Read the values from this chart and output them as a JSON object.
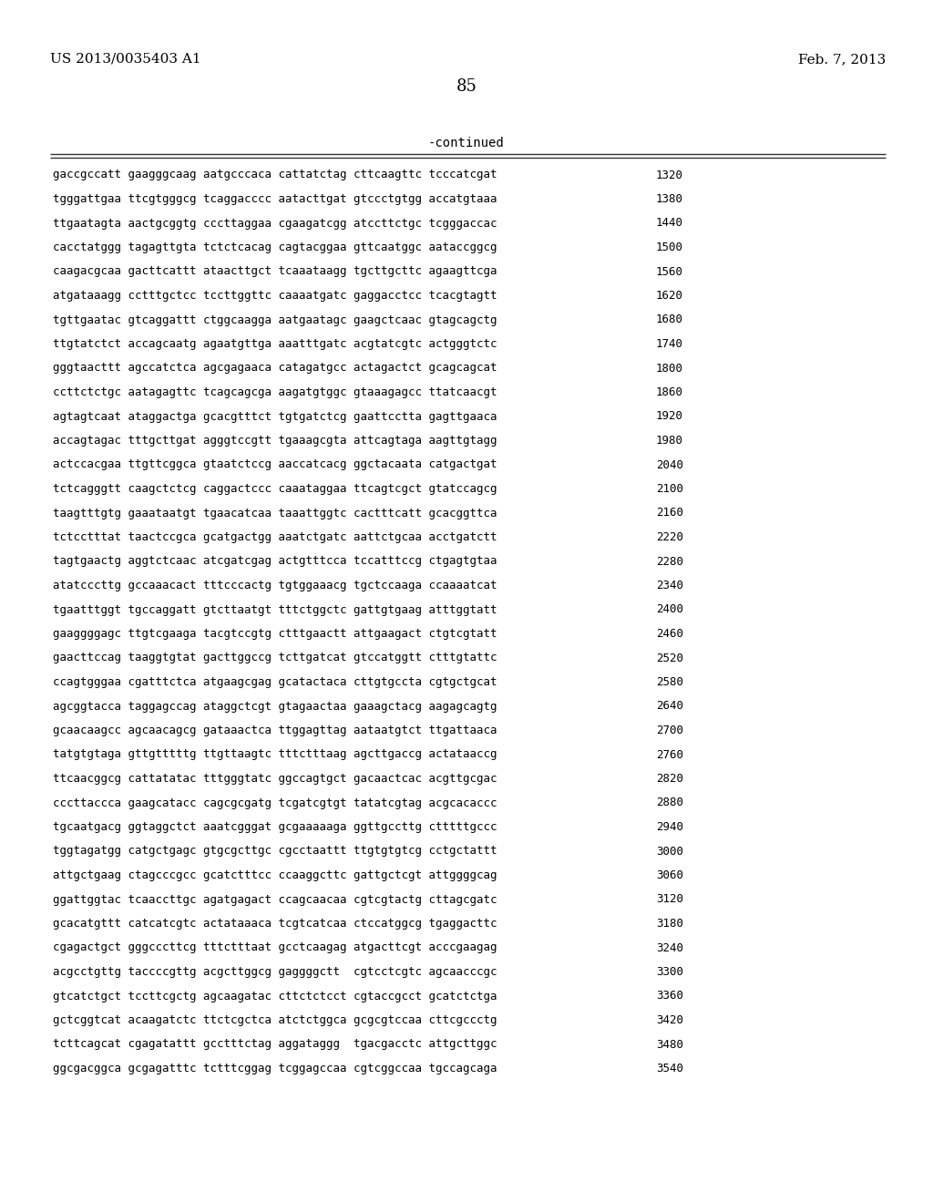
{
  "header_left": "US 2013/0035403 A1",
  "header_right": "Feb. 7, 2013",
  "page_number": "85",
  "continued_label": "-continued",
  "background_color": "#ffffff",
  "text_color": "#000000",
  "font_size_header": 11,
  "font_size_page": 13,
  "font_size_continued": 10,
  "font_size_sequence": 9.0,
  "lines": [
    [
      "gaccgccatt gaagggcaag aatgcccaca cattatctag cttcaagttc tcccatcgat",
      "1320"
    ],
    [
      "tgggattgaa ttcgtgggcg tcaggacccc aatacttgat gtccctgtgg accatgtaaa",
      "1380"
    ],
    [
      "ttgaatagta aactgcggtg cccttaggaa cgaagatcgg atccttctgc tcgggaccac",
      "1440"
    ],
    [
      "cacctatggg tagagttgta tctctcacag cagtacggaa gttcaatggc aataccggcg",
      "1500"
    ],
    [
      "caagacgcaa gacttcattt ataacttgct tcaaataagg tgcttgcttc agaagttcga",
      "1560"
    ],
    [
      "atgataaagg cctttgctcc tccttggttc caaaatgatc gaggacctcc tcacgtagtt",
      "1620"
    ],
    [
      "tgttgaatac gtcaggattt ctggcaagga aatgaatagc gaagctcaac gtagcagctg",
      "1680"
    ],
    [
      "ttgtatctct accagcaatg agaatgttga aaatttgatc acgtatcgtc actgggtctc",
      "1740"
    ],
    [
      "gggtaacttt agccatctca agcgagaaca catagatgcc actagactct gcagcagcat",
      "1800"
    ],
    [
      "ccttctctgc aatagagttc tcagcagcga aagatgtggc gtaaagagcc ttatcaacgt",
      "1860"
    ],
    [
      "agtagtcaat ataggactga gcacgtttct tgtgatctcg gaattcctta gagttgaaca",
      "1920"
    ],
    [
      "accagtagac tttgcttgat agggtccgtt tgaaagcgta attcagtaga aagttgtagg",
      "1980"
    ],
    [
      "actccacgaa ttgttcggca gtaatctccg aaccatcacg ggctacaata catgactgat",
      "2040"
    ],
    [
      "tctcagggtt caagctctcg caggactccc caaataggaa ttcagtcgct gtatccagcg",
      "2100"
    ],
    [
      "taagtttgtg gaaataatgt tgaacatcaa taaattggtc cactttcatt gcacggttca",
      "2160"
    ],
    [
      "tctcctttat taactccgca gcatgactgg aaatctgatc aattctgcaa acctgatctt",
      "2220"
    ],
    [
      "tagtgaactg aggtctcaac atcgatcgag actgtttcca tccatttccg ctgagtgtaa",
      "2280"
    ],
    [
      "atatcccttg gccaaacact tttcccactg tgtggaaacg tgctccaaga ccaaaatcat",
      "2340"
    ],
    [
      "tgaatttggt tgccaggatt gtcttaatgt tttctggctc gattgtgaag atttggtatt",
      "2400"
    ],
    [
      "gaaggggagc ttgtcgaaga tacgtccgtg ctttgaactt attgaagact ctgtcgtatt",
      "2460"
    ],
    [
      "gaacttccag taaggtgtat gacttggccg tcttgatcat gtccatggtt ctttgtattc",
      "2520"
    ],
    [
      "ccagtgggaa cgatttctca atgaagcgag gcatactaca cttgtgccta cgtgctgcat",
      "2580"
    ],
    [
      "agcggtacca taggagccag ataggctcgt gtagaactaa gaaagctacg aagagcagtg",
      "2640"
    ],
    [
      "gcaacaagcc agcaacagcg gataaactca ttggagttag aataatgtct ttgattaaca",
      "2700"
    ],
    [
      "tatgtgtaga gttgtttttg ttgttaagtc tttctttaag agcttgaccg actataaccg",
      "2760"
    ],
    [
      "ttcaacggcg cattatatac tttgggtatc ggccagtgct gacaactcac acgttgcgac",
      "2820"
    ],
    [
      "cccttaccca gaagcatacc cagcgcgatg tcgatcgtgt tatatcgtag acgcacaccc",
      "2880"
    ],
    [
      "tgcaatgacg ggtaggctct aaatcgggat gcgaaaaaga ggttgccttg ctttttgccc",
      "2940"
    ],
    [
      "tggtagatgg catgctgagc gtgcgcttgc cgcctaattt ttgtgtgtcg cctgctattt",
      "3000"
    ],
    [
      "attgctgaag ctagcccgcc gcatctttcc ccaaggcttc gattgctcgt attggggcag",
      "3060"
    ],
    [
      "ggattggtac tcaaccttgc agatgagact ccagcaacaa cgtcgtactg cttagcgatc",
      "3120"
    ],
    [
      "gcacatgttt catcatcgtc actataaaca tcgtcatcaa ctccatggcg tgaggacttc",
      "3180"
    ],
    [
      "cgagactgct gggcccttcg tttctttaat gcctcaagag atgacttcgt acccgaagag",
      "3240"
    ],
    [
      "acgcctgttg taccccgttg acgcttggcg gaggggctt  cgtcctcgtc agcaacccgc",
      "3300"
    ],
    [
      "gtcatctgct tccttcgctg agcaagatac cttctctcct cgtaccgcct gcatctctga",
      "3360"
    ],
    [
      "gctcggtcat acaagatctc ttctcgctca atctctggca gcgcgtccaa cttcgccctg",
      "3420"
    ],
    [
      "tcttcagcat cgagatattt gcctttctag aggataggg  tgacgacctc attgcttggc",
      "3480"
    ],
    [
      "ggcgacggca gcgagatttc tctttcggag tcggagccaa cgtcggccaa tgccagcaga",
      "3540"
    ]
  ]
}
